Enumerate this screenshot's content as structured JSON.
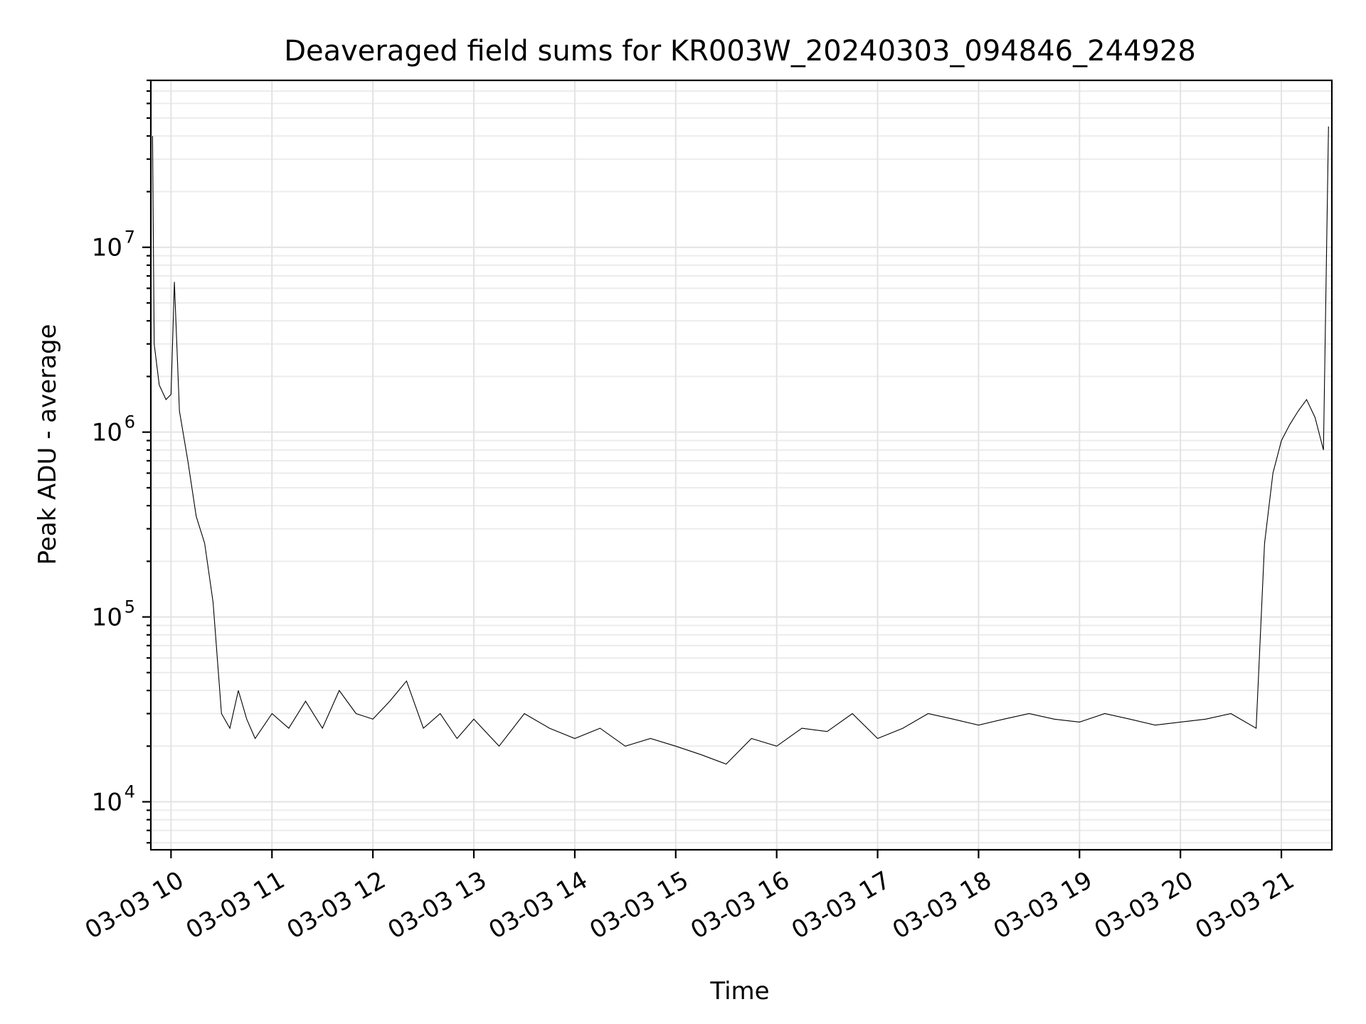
{
  "chart_data": {
    "type": "line",
    "title": "Deaveraged field sums for KR003W_20240303_094846_244928",
    "xlabel": "Time",
    "ylabel": "Peak ADU - average",
    "yscale": "log",
    "grid": true,
    "x_range": [
      "2024-03-03 09:48",
      "2024-03-03 21:30"
    ],
    "ylim": [
      5500,
      80000000
    ],
    "x_ticks": [
      "03-03 10",
      "03-03 11",
      "03-03 12",
      "03-03 13",
      "03-03 14",
      "03-03 15",
      "03-03 16",
      "03-03 17",
      "03-03 18",
      "03-03 19",
      "03-03 20",
      "03-03 21"
    ],
    "x_tick_hours": [
      10,
      11,
      12,
      13,
      14,
      15,
      16,
      17,
      18,
      19,
      20,
      21
    ],
    "y_ticks": [
      {
        "value": 10000,
        "base": "10",
        "exp": "4"
      },
      {
        "value": 100000,
        "base": "10",
        "exp": "5"
      },
      {
        "value": 1000000,
        "base": "10",
        "exp": "6"
      },
      {
        "value": 10000000,
        "base": "10",
        "exp": "7"
      }
    ],
    "series_color": "#000000",
    "series": [
      {
        "x": [
          "09:49",
          "09:50",
          "09:53",
          "09:57",
          "10:00",
          "10:02",
          "10:05",
          "10:10",
          "10:15",
          "10:20",
          "10:25",
          "10:30",
          "10:35",
          "10:40",
          "10:45",
          "10:50",
          "11:00",
          "11:10",
          "11:20",
          "11:30",
          "11:40",
          "11:50",
          "12:00",
          "12:10",
          "12:20",
          "12:30",
          "12:40",
          "12:50",
          "13:00",
          "13:15",
          "13:30",
          "13:45",
          "14:00",
          "14:15",
          "14:30",
          "14:45",
          "15:00",
          "15:15",
          "15:30",
          "15:45",
          "16:00",
          "16:15",
          "16:30",
          "16:45",
          "17:00",
          "17:15",
          "17:30",
          "17:45",
          "18:00",
          "18:15",
          "18:30",
          "18:45",
          "19:00",
          "19:15",
          "19:30",
          "19:45",
          "20:00",
          "20:15",
          "20:30",
          "20:45",
          "20:50",
          "20:55",
          "21:00",
          "21:05",
          "21:10",
          "21:15",
          "21:20",
          "21:25",
          "21:28"
        ],
        "y": [
          40000000,
          3000000,
          1800000,
          1500000,
          1600000,
          6500000,
          1300000,
          700000,
          350000,
          250000,
          120000,
          30000,
          25000,
          40000,
          28000,
          22000,
          30000,
          25000,
          35000,
          25000,
          40000,
          30000,
          28000,
          35000,
          45000,
          25000,
          30000,
          22000,
          28000,
          20000,
          30000,
          25000,
          22000,
          25000,
          20000,
          22000,
          20000,
          18000,
          16000,
          22000,
          20000,
          25000,
          24000,
          30000,
          22000,
          25000,
          30000,
          28000,
          26000,
          28000,
          30000,
          28000,
          27000,
          30000,
          28000,
          26000,
          27000,
          28000,
          30000,
          25000,
          250000,
          600000,
          900000,
          1100000,
          1300000,
          1500000,
          1200000,
          800000,
          45000000
        ]
      }
    ]
  }
}
